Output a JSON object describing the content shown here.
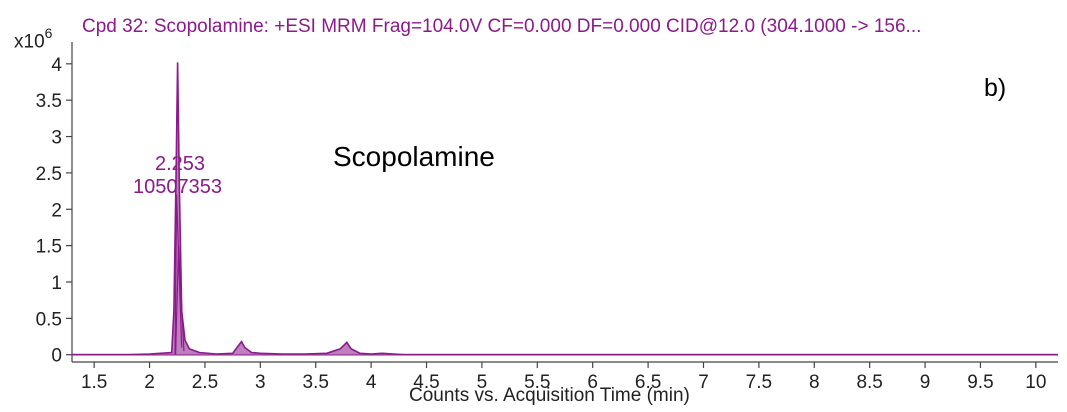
{
  "header": {
    "title": "Cpd 32: Scopolamine: +ESI MRM Frag=104.0V CF=0.000 DF=0.000 CID@12.0 (304.1000 -> 156...",
    "scale": "x10",
    "scale_exp": "6",
    "panel_label": "b)"
  },
  "chart_data": {
    "type": "line",
    "title": "Cpd 32: Scopolamine: +ESI MRM Frag=104.0V CF=0.000 DF=0.000 CID@12.0 (304.1000 -> 156...",
    "xlabel": "Counts vs. Acquisition Time (min)",
    "ylabel": "",
    "y_multiplier": "x10^6",
    "xlim": [
      1.3,
      10.2
    ],
    "ylim": [
      -0.1,
      4.3
    ],
    "xticks": [
      1.5,
      2,
      2.5,
      3,
      3.5,
      4,
      4.5,
      5,
      5.5,
      6,
      6.5,
      7,
      7.5,
      8,
      8.5,
      9,
      9.5,
      10
    ],
    "yticks": [
      0,
      0.5,
      1,
      1.5,
      2,
      2.5,
      3,
      3.5,
      4
    ],
    "grid": false,
    "legend": "none",
    "color": "#8B1A8B",
    "fill_color": "#B268B2",
    "series": [
      {
        "x": [
          1.3,
          1.8,
          2.0,
          2.1,
          2.2,
          2.22,
          2.24,
          2.253,
          2.27,
          2.29,
          2.32,
          2.36,
          2.45,
          2.6,
          2.75,
          2.83,
          2.86,
          2.92,
          3.0,
          3.2,
          3.4,
          3.6,
          3.72,
          3.78,
          3.82,
          3.9,
          4.0,
          4.1,
          4.2,
          4.3,
          4.5,
          5.0,
          6.0,
          8.0,
          10.2
        ],
        "y": [
          0.0,
          0.0,
          0.01,
          0.02,
          0.03,
          0.6,
          2.5,
          4.02,
          2.2,
          0.6,
          0.2,
          0.08,
          0.03,
          0.01,
          0.02,
          0.18,
          0.1,
          0.03,
          0.02,
          0.01,
          0.01,
          0.02,
          0.08,
          0.17,
          0.08,
          0.02,
          0.01,
          0.02,
          0.01,
          0.0,
          0.0,
          0.0,
          0.0,
          0.0,
          0.0
        ]
      }
    ],
    "annotations": {
      "compound": "Scopolamine",
      "peak_rt": "2.253",
      "peak_area": "10507353"
    }
  }
}
